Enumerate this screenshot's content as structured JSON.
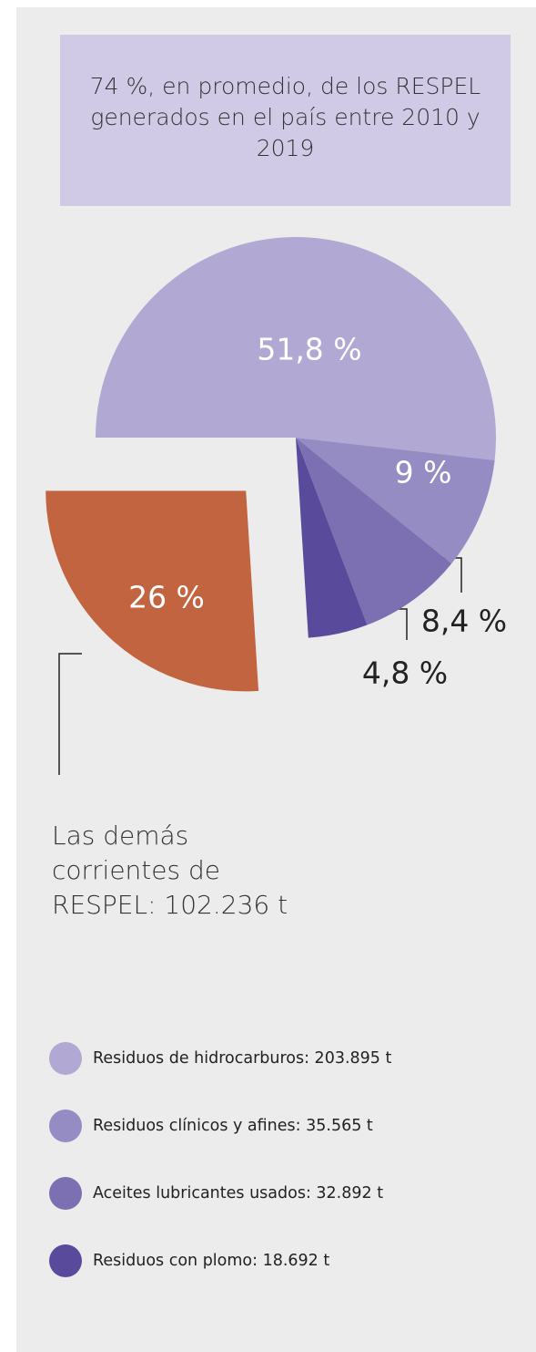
{
  "chart_data": {
    "type": "pie",
    "title": "74 %, en promedio, de los RESPEL generados en el país entre 2010 y 2019",
    "categories": [
      "Residuos de hidrocarburos: 203.895 t",
      "Residuos clínicos y afines: 35.565 t",
      "Aceites lubricantes usados: 32.892 t",
      "Residuos con plomo: 18.692 t",
      "Las demás corrientes de RESPEL: 102.236 t"
    ],
    "values": [
      51.8,
      9,
      8.4,
      4.8,
      26
    ],
    "value_labels": [
      "51,8 %",
      "9 %",
      "8,4 %",
      "4,8 %",
      "26 %"
    ],
    "colors": [
      "#b1a8d3",
      "#968cc4",
      "#7c6fb2",
      "#5a4a9b",
      "#c26440"
    ],
    "exploded": 4
  }
}
